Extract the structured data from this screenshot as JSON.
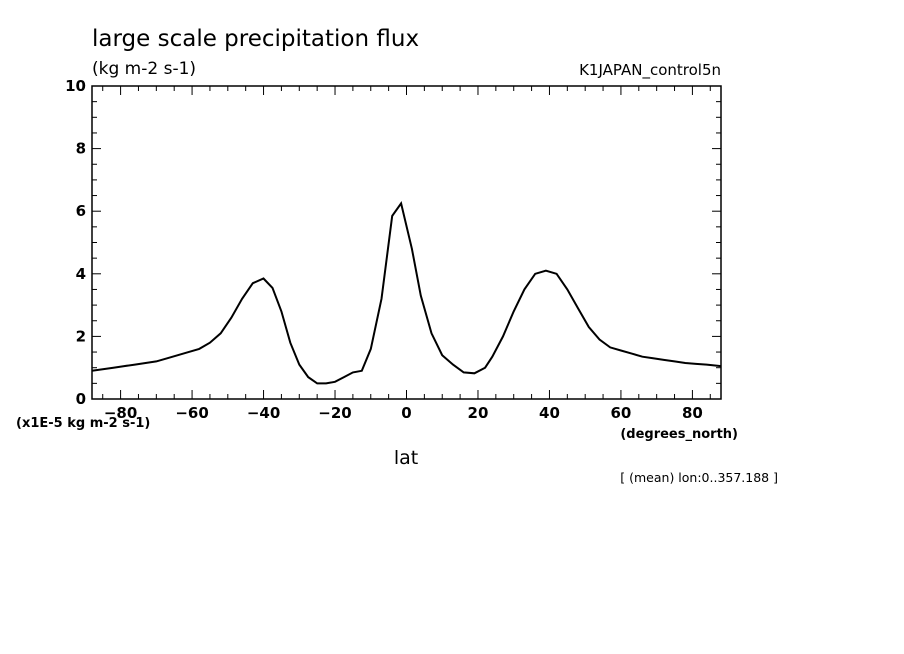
{
  "chart_data": {
    "type": "line",
    "title": "large scale precipitation flux",
    "units": "(kg m-2 s-1)",
    "run_label": "K1JAPAN_control5n",
    "xlabel": "lat",
    "xunits": "(degrees_north)",
    "yscale_label": "(x1E-5 kg m-2 s-1)",
    "range_note": "[ (mean) lon:0..357.188 ]",
    "xlim": [
      -88,
      88
    ],
    "ylim": [
      0,
      10
    ],
    "xticks": [
      -80,
      -60,
      -40,
      -20,
      0,
      20,
      40,
      60,
      80
    ],
    "yticks": [
      0,
      2,
      4,
      6,
      8,
      10
    ],
    "series": [
      {
        "x": [
          -88,
          -85,
          -82,
          -79,
          -76,
          -73,
          -70,
          -67,
          -64,
          -61,
          -58,
          -55,
          -52,
          -49,
          -46,
          -43,
          -40,
          -37.5,
          -35,
          -32.5,
          -30,
          -27.5,
          -25,
          -22.5,
          -20,
          -17.5,
          -15,
          -12.5,
          -10,
          -7,
          -4,
          -1.5,
          1.5,
          4,
          7,
          10,
          13,
          16,
          19,
          22,
          24,
          27,
          30,
          33,
          36,
          39,
          42,
          45,
          48,
          51,
          54,
          57,
          60,
          63,
          66,
          69,
          72,
          75,
          78,
          81,
          84,
          88
        ],
        "values": [
          0.9,
          0.95,
          1.0,
          1.05,
          1.1,
          1.15,
          1.2,
          1.3,
          1.4,
          1.5,
          1.6,
          1.8,
          2.1,
          2.6,
          3.2,
          3.7,
          3.85,
          3.55,
          2.8,
          1.8,
          1.1,
          0.7,
          0.5,
          0.5,
          0.55,
          0.7,
          0.85,
          0.9,
          1.6,
          3.2,
          5.85,
          6.25,
          4.8,
          3.3,
          2.1,
          1.4,
          1.1,
          0.85,
          0.82,
          1.0,
          1.35,
          2.0,
          2.8,
          3.5,
          4.0,
          4.1,
          4.0,
          3.5,
          2.9,
          2.3,
          1.9,
          1.65,
          1.55,
          1.45,
          1.35,
          1.3,
          1.25,
          1.2,
          1.15,
          1.12,
          1.1,
          1.05
        ]
      }
    ]
  }
}
